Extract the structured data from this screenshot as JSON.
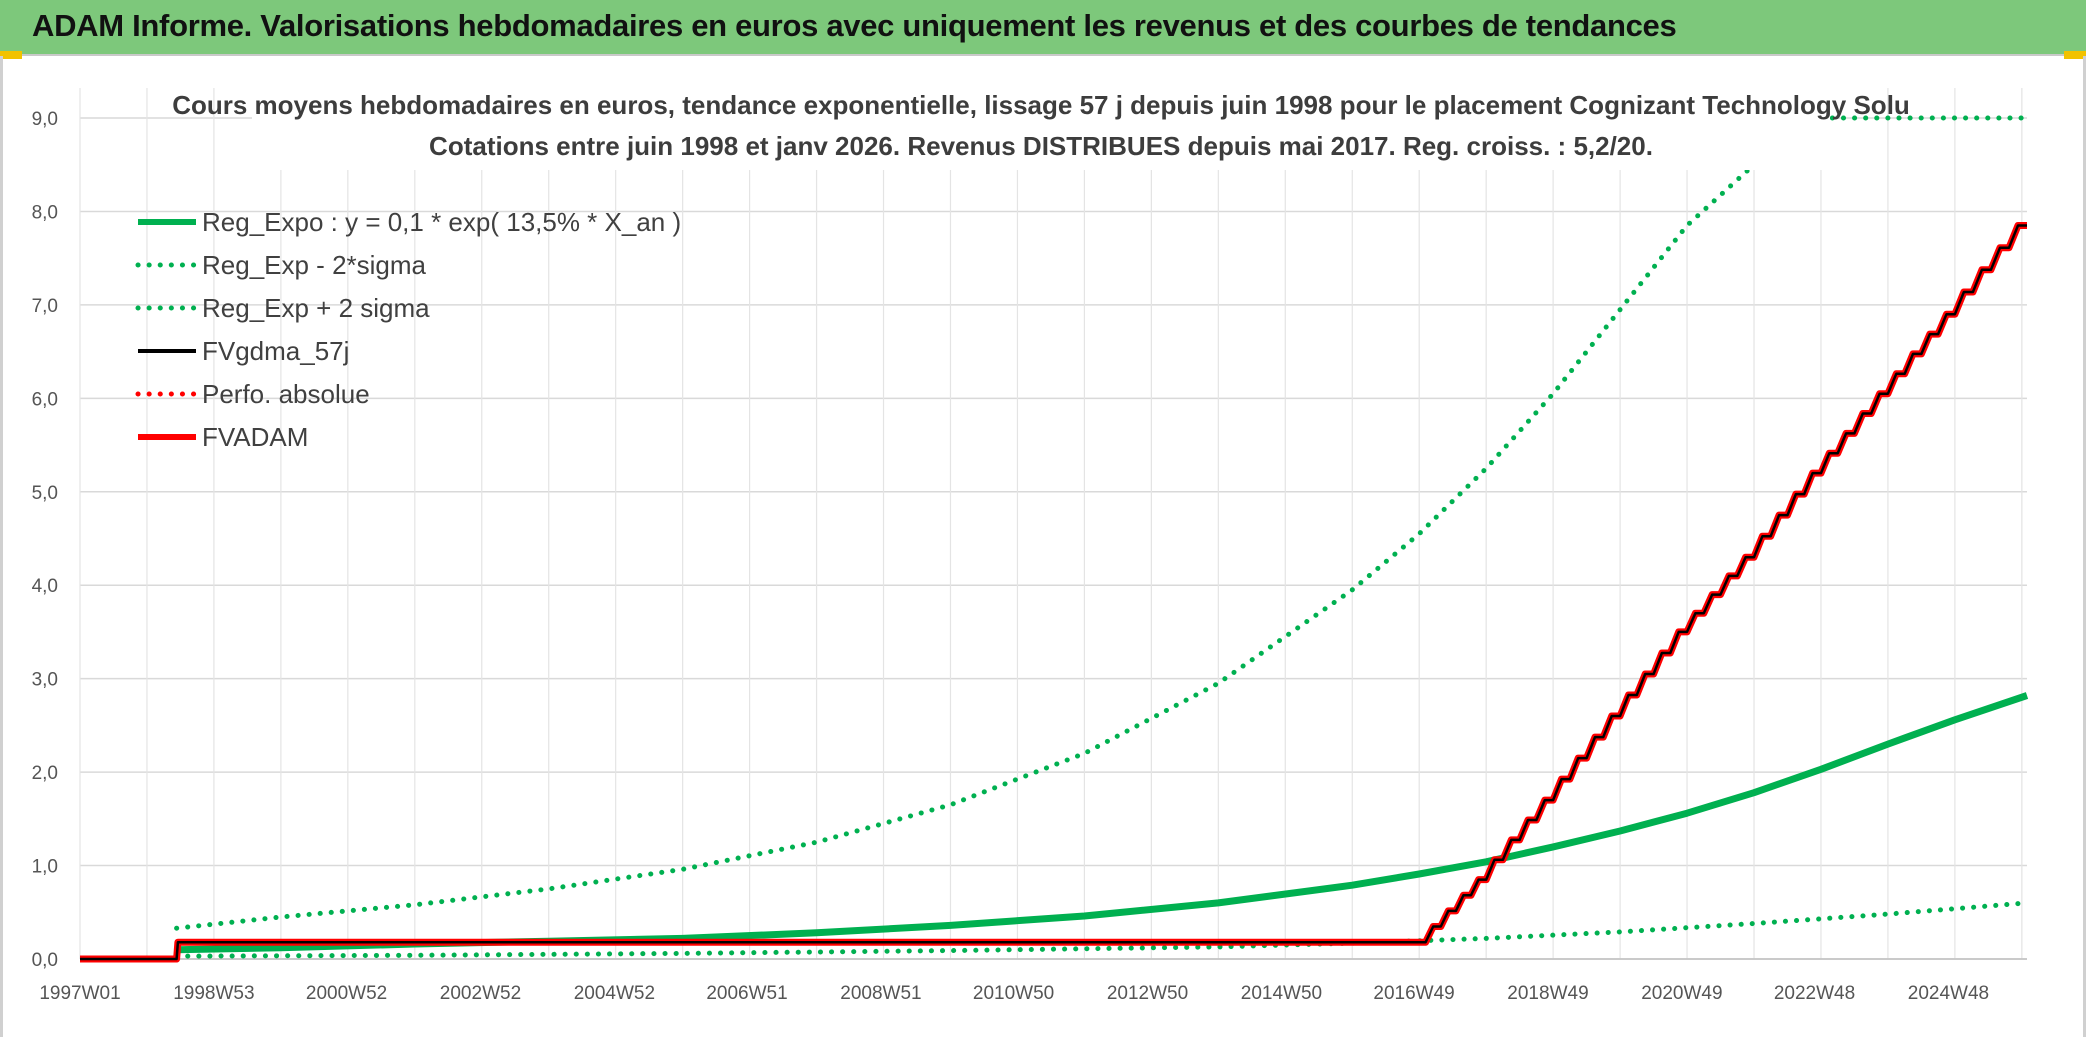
{
  "header": {
    "title": "ADAM Informe. Valorisations hebdomadaires en euros avec uniquement les revenus et des courbes de tendances",
    "accent_color": "#7dc87b",
    "corner_color": "#f2c200"
  },
  "chart_data": {
    "type": "line",
    "title": "Cours moyens hebdomadaires en euros, tendance exponentielle, lissage 57 j depuis juin 1998 pour le placement Cognizant Technology Solu",
    "subtitle": "Cotations entre juin 1998 et janv 2026. Revenus DISTRIBUES depuis mai 2017. Reg. croiss. : 5,2/20.",
    "xlabel": "",
    "ylabel": "",
    "x_scale": "time (weeks)",
    "xlim": [
      "1997W01",
      "2026W05"
    ],
    "ylim": [
      0,
      9
    ],
    "grid": true,
    "legend_position": "top-left",
    "x_tick_labels": [
      "1997W01",
      "1998W53",
      "2000W52",
      "2002W52",
      "2004W52",
      "2006W51",
      "2008W51",
      "2010W50",
      "2012W50",
      "2014W50",
      "2016W49",
      "2018W49",
      "2020W49",
      "2022W48",
      "2024W48"
    ],
    "y_tick_labels": [
      "0,0",
      "1,0",
      "2,0",
      "3,0",
      "4,0",
      "5,0",
      "6,0",
      "7,0",
      "8,0",
      "9,0"
    ],
    "series": [
      {
        "name": "Reg_Expo : y = 0,1 * exp( 13,5% *  X_an )",
        "color": "#00b050",
        "style": "solid-thick",
        "x": [
          "1998W24",
          "2000W01",
          "2002W01",
          "2004W01",
          "2006W01",
          "2008W01",
          "2010W01",
          "2012W01",
          "2014W01",
          "2016W01",
          "2017W01",
          "2018W01",
          "2019W01",
          "2020W01",
          "2021W01",
          "2022W01",
          "2023W01",
          "2024W01",
          "2025W01",
          "2026W05"
        ],
        "y": [
          0.1,
          0.12,
          0.16,
          0.19,
          0.22,
          0.28,
          0.36,
          0.46,
          0.6,
          0.79,
          0.91,
          1.04,
          1.2,
          1.37,
          1.56,
          1.78,
          2.03,
          2.3,
          2.56,
          2.82
        ]
      },
      {
        "name": "Reg_Exp - 2*sigma",
        "color": "#00b050",
        "style": "dotted",
        "x": [
          "1998W24",
          "2002W01",
          "2006W01",
          "2010W01",
          "2014W01",
          "2016W01",
          "2018W01",
          "2020W01",
          "2022W01",
          "2024W01",
          "2026W05"
        ],
        "y": [
          0.03,
          0.04,
          0.06,
          0.09,
          0.13,
          0.17,
          0.22,
          0.29,
          0.38,
          0.48,
          0.6
        ]
      },
      {
        "name": "Reg_Exp + 2 sigma",
        "color": "#00b050",
        "style": "dotted",
        "x": [
          "1998W24",
          "2000W01",
          "2002W01",
          "2004W01",
          "2006W01",
          "2008W01",
          "2010W01",
          "2012W01",
          "2014W01",
          "2016W01",
          "2017W01",
          "2018W01",
          "2019W01",
          "2020W01",
          "2021W01",
          "2022W01",
          "2022W26",
          "2022W27",
          "2026W05"
        ],
        "y": [
          0.33,
          0.45,
          0.58,
          0.75,
          0.96,
          1.25,
          1.65,
          2.2,
          2.95,
          3.95,
          4.55,
          5.25,
          6.05,
          6.95,
          7.85,
          8.5,
          8.5,
          9.0,
          9.0
        ]
      },
      {
        "name": "FVgdma_57j",
        "color": "#000000",
        "style": "solid",
        "x": [
          "1997W01",
          "1998W24",
          "1998W25",
          "2017W06",
          "2018W01",
          "2019W01",
          "2020W01",
          "2021W01",
          "2022W01",
          "2023W01",
          "2024W01",
          "2025W01",
          "2026W05"
        ],
        "y": [
          0,
          0,
          0.18,
          0.18,
          0.85,
          1.7,
          2.6,
          3.5,
          4.3,
          5.2,
          6.05,
          6.9,
          7.85
        ]
      },
      {
        "name": "Perfo. absolue",
        "color": "#ff0000",
        "style": "dotted",
        "x": [],
        "y": []
      },
      {
        "name": "FVADAM",
        "color": "#ff0000",
        "style": "solid-thick-stepped",
        "x": [
          "1997W01",
          "1998W24",
          "1998W25",
          "2017W06",
          "2018W01",
          "2019W01",
          "2020W01",
          "2021W01",
          "2022W01",
          "2023W01",
          "2024W01",
          "2025W01",
          "2026W05"
        ],
        "y": [
          0,
          0,
          0.18,
          0.18,
          0.85,
          1.7,
          2.6,
          3.5,
          4.3,
          5.2,
          6.05,
          6.9,
          7.85
        ]
      }
    ]
  }
}
